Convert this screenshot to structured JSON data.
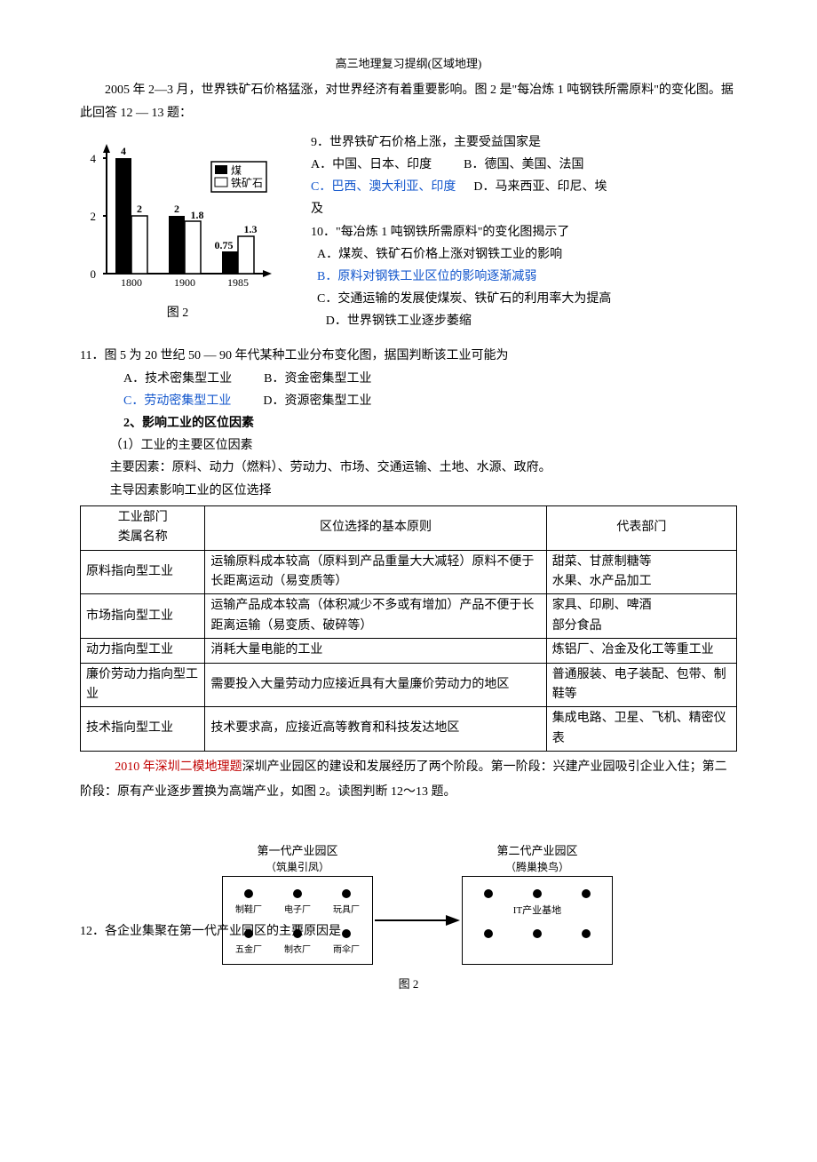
{
  "header": "高三地理复习提纲(区域地理)",
  "intro": "2005 年 2—3 月，世界铁矿石价格猛涨，对世界经济有着重要影响。图 2 是\"每冶炼 1 吨钢铁所需原料\"的变化图。据此回答 12 — 13 题：",
  "chart": {
    "type": "bar",
    "years": [
      "1800",
      "1900",
      "1985"
    ],
    "series": [
      {
        "name": "煤",
        "values": [
          4,
          2,
          0.75
        ],
        "color": "#000000"
      },
      {
        "name": "铁矿石",
        "values": [
          2,
          1.8,
          1.3
        ],
        "color": "#ffffff"
      }
    ],
    "ylim": [
      0,
      4
    ],
    "yticks": [
      0,
      2,
      4
    ],
    "value_labels": [
      "4",
      "2",
      "2",
      "1.8",
      "0.75",
      "1.3"
    ],
    "legend": [
      {
        "label": "煤",
        "fill": "#000000"
      },
      {
        "label": "铁矿石",
        "fill": "#ffffff"
      }
    ],
    "caption": "图 2",
    "axis_color": "#000000",
    "font_size": 12
  },
  "q9": {
    "stem": "9．世界铁矿石价格上涨，主要受益国家是",
    "optA": "A．中国、日本、印度",
    "optB": "B．德国、美国、法国",
    "optC": "C．巴西、澳大利亚、印度",
    "optD": "D．马来西亚、印尼、埃及",
    "optD_tail": "及",
    "optD_head": "D．马来西亚、印尼、埃"
  },
  "q10": {
    "stem": "10．\"每冶炼 1 吨钢铁所需原料\"的变化图揭示了",
    "optA": "A．煤炭、铁矿石价格上涨对钢铁工业的影响",
    "optB": "B．原料对钢铁工业区位的影响逐渐减弱",
    "optC": "C．交通运输的发展使煤炭、铁矿石的利用率大为提高",
    "optD": "D．世界钢铁工业逐步萎缩"
  },
  "q11": {
    "stem": "11．图 5 为 20 世纪 50 — 90 年代某种工业分布变化图，据国判断该工业可能为",
    "optA": "A．技术密集型工业",
    "optB": "B．资金密集型工业",
    "optC": "C．劳动密集型工业",
    "optD": "D．资源密集型工业"
  },
  "section2": {
    "title": "2、影响工业的区位因素",
    "sub1": "（1）工业的主要区位因素",
    "line1": "主要因素：原料、动力（燃料）、劳动力、市场、交通运输、土地、水源、政府。",
    "line2": "主导因素影响工业的区位选择"
  },
  "table": {
    "headers": [
      "工业部门\n类属名称",
      "区位选择的基本原则",
      "代表部门"
    ],
    "rows": [
      [
        "原料指向型工业",
        "运输原料成本较高（原料到产品重量大大减轻）原料不便于长距离运动（易变质等）",
        "甜菜、甘蔗制糖等\n水果、水产品加工"
      ],
      [
        "市场指向型工业",
        "运输产品成本较高（体积减少不多或有增加）产品不便于长距离运输（易变质、破碎等）",
        "家具、印刷、啤酒\n部分食品"
      ],
      [
        "动力指向型工业",
        "消耗大量电能的工业",
        "炼铝厂、冶金及化工等重工业"
      ],
      [
        "廉价劳动力指向型工业",
        "需要投入大量劳动力应接近具有大量廉价劳动力的地区",
        "普通服装、电子装配、包带、制鞋等"
      ],
      [
        "技术指向型工业",
        "技术要求高，应接近高等教育和科技发达地区",
        "集成电路、卫星、飞机、精密仪表"
      ]
    ],
    "col_widths": [
      "19%",
      "52%",
      "29%"
    ]
  },
  "shenzhen": {
    "tag": "2010 年深圳二模地理题",
    "body": "深圳产业园区的建设和发展经历了两个阶段。第一阶段：兴建产业园吸引企业入住；第二阶段：原有产业逐步置换为高端产业，如图 2。读图判断 12～13 题。"
  },
  "park": {
    "box1": {
      "title": "第一代产业园区",
      "subtitle": "（筑巢引凤）",
      "labels_top": [
        "制鞋厂",
        "电子厂",
        "玩具厂"
      ],
      "labels_bot": [
        "五金厂",
        "制衣厂",
        "雨伞厂"
      ]
    },
    "box2": {
      "title": "第二代产业园区",
      "subtitle": "（腾巢换鸟）",
      "center_label": "IT产业基地"
    },
    "caption": "图 2"
  },
  "q12": "12．各企业集聚在第一代产业园区的主要原因是"
}
